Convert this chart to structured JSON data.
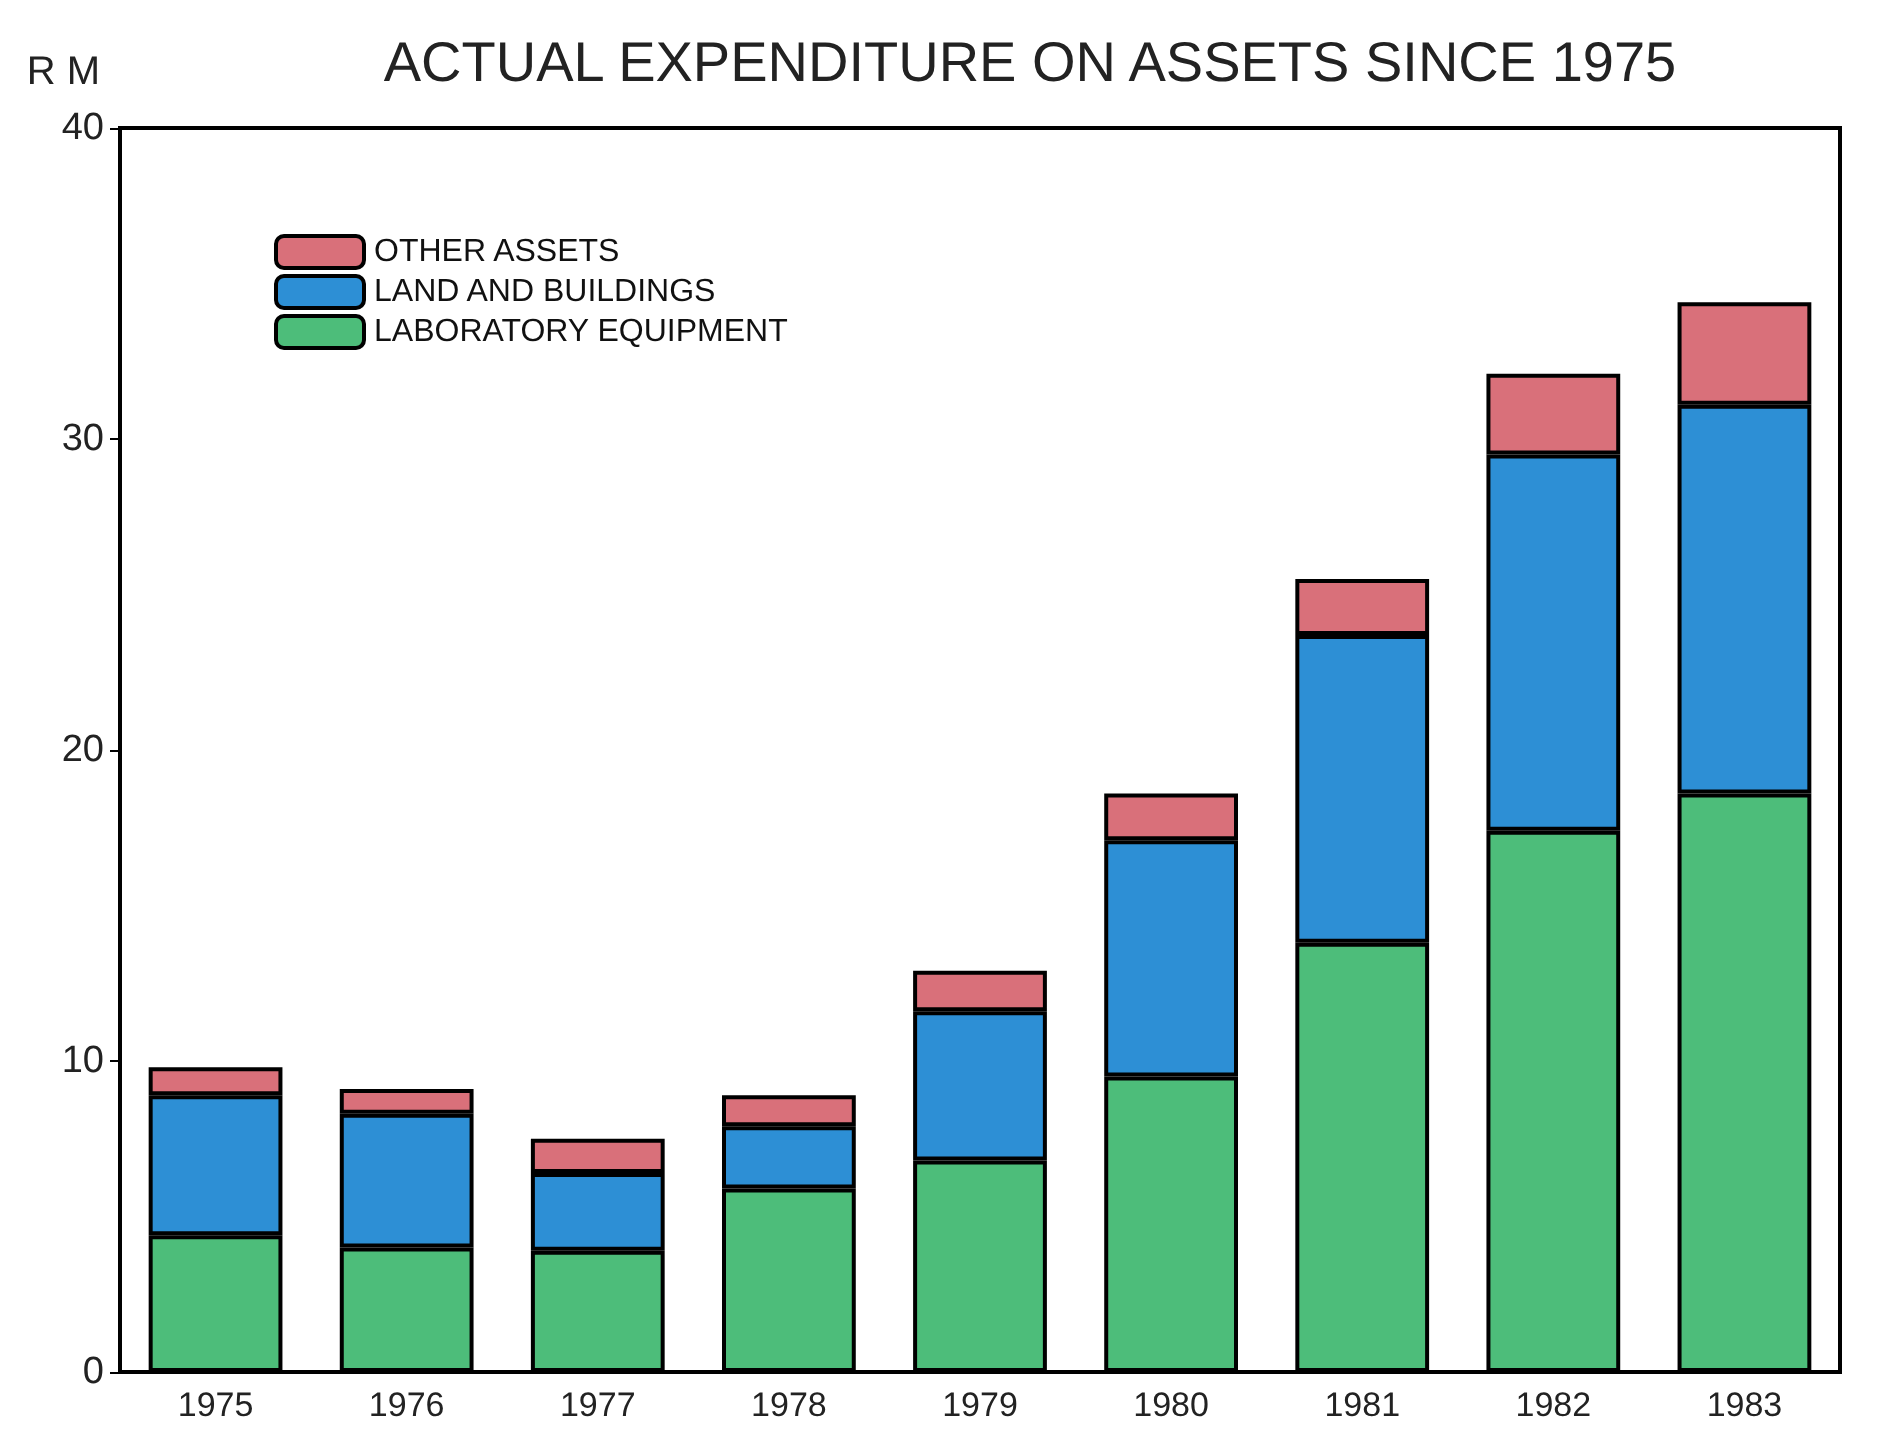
{
  "chart_data": {
    "type": "bar",
    "title": "ACTUAL EXPENDITURE ON ASSETS SINCE 1975",
    "ylabel": "R M",
    "stacked": true,
    "categories": [
      "1975",
      "1976",
      "1977",
      "1978",
      "1979",
      "1980",
      "1981",
      "1982",
      "1983"
    ],
    "series": [
      {
        "name": "LABORATORY EQUIPMENT",
        "color": "#4dbd7a",
        "values": [
          4.4,
          4.0,
          3.9,
          5.9,
          6.8,
          9.5,
          13.8,
          17.4,
          18.6
        ]
      },
      {
        "name": "LAND AND BUILDINGS",
        "color": "#2d8fd5",
        "values": [
          4.5,
          4.3,
          2.5,
          2.0,
          4.8,
          7.6,
          9.9,
          12.1,
          12.5
        ]
      },
      {
        "name": "OTHER ASSETS",
        "color": "#d9707a",
        "values": [
          0.9,
          0.8,
          1.1,
          1.0,
          1.3,
          1.5,
          1.8,
          2.6,
          3.3
        ]
      }
    ],
    "ylim": [
      0,
      40
    ],
    "yticks": [
      0,
      10,
      20,
      30,
      40
    ],
    "grid": false,
    "legend": "top left"
  }
}
